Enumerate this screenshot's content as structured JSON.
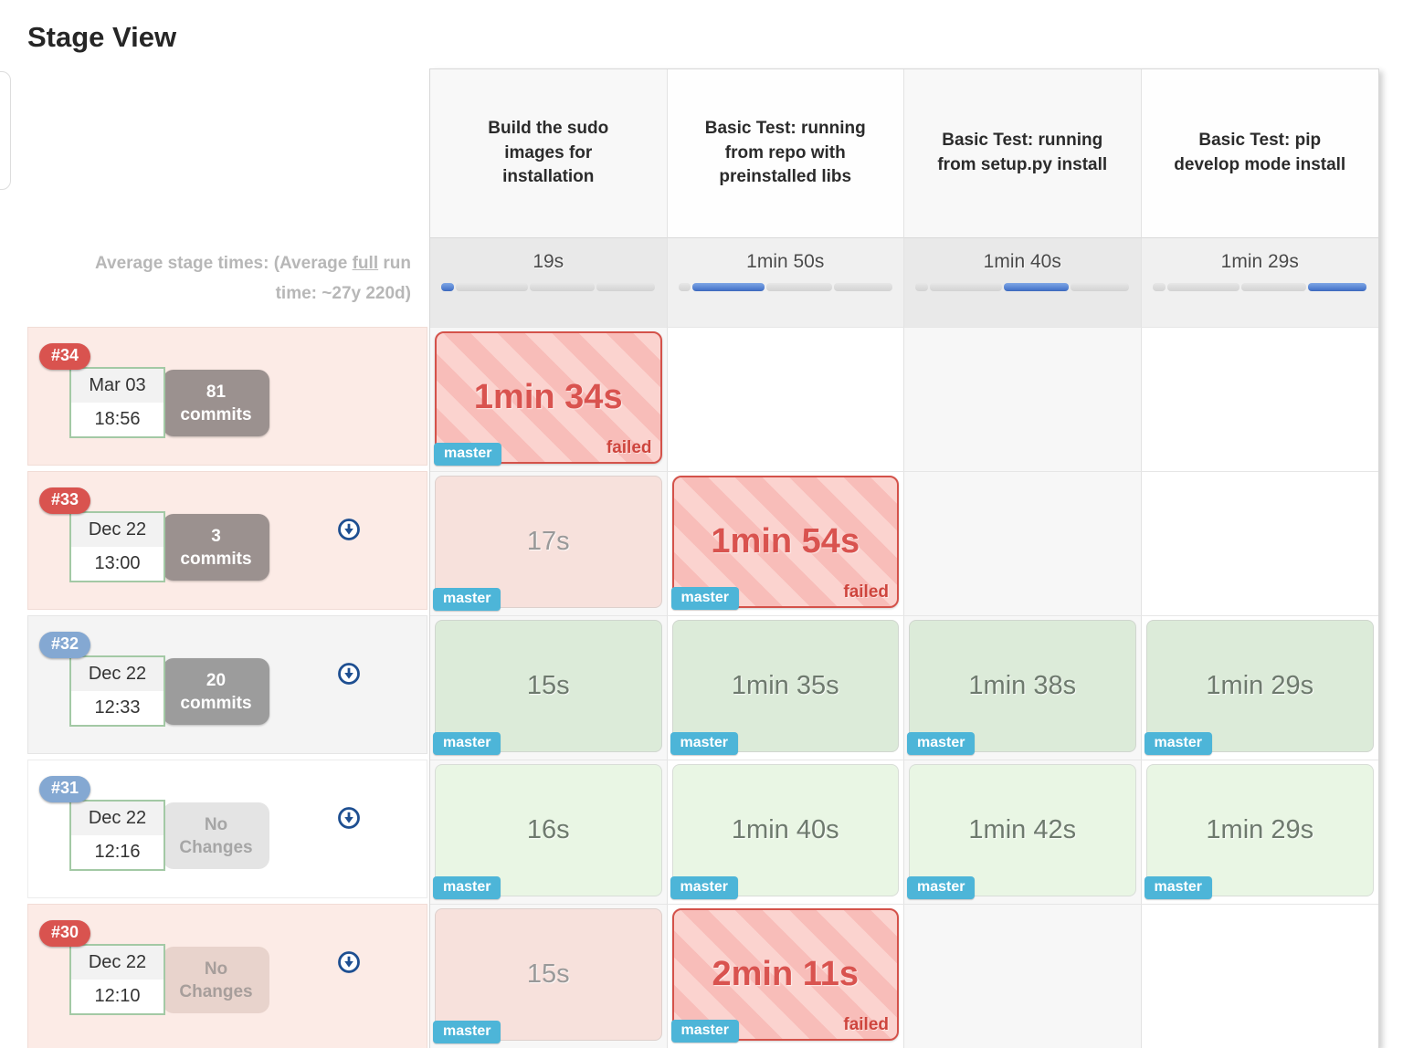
{
  "page": {
    "title": "Stage View"
  },
  "colors": {
    "failed_red": "#d9534f",
    "success_badge_blue": "#84a8d2",
    "branch_badge_blue": "#4db5d8",
    "progress_blue": "#4a78cb",
    "green_cell_dark": "#dcebd9",
    "green_cell_light": "#e9f6e4",
    "failed_row_pink": "#fcebe6"
  },
  "average_header": {
    "line1": "Average stage times:",
    "line2_prefix": "(Average ",
    "line2_underlined": "full",
    "line2_suffix": " run time: ~27y 220d)"
  },
  "average_row": {
    "segments_pct": [
      6,
      34.6,
      31.4,
      28
    ]
  },
  "stages": [
    {
      "name": "Build the sudo images for installation",
      "avg_time": "19s"
    },
    {
      "name": "Basic Test: running from repo with preinstalled libs",
      "avg_time": "1min 50s"
    },
    {
      "name": "Basic Test: running from setup.py install",
      "avg_time": "1min 40s"
    },
    {
      "name": "Basic Test: pip develop mode install",
      "avg_time": "1min 29s"
    }
  ],
  "builds": [
    {
      "id": "#34",
      "status": "failed",
      "date": "Mar 03",
      "time": "18:56",
      "changes": {
        "line1": "81",
        "line2": "commits"
      },
      "cells": [
        {
          "time": "1min 34s",
          "status": "failed",
          "branch": "master",
          "flag": "failed"
        },
        null,
        null,
        null
      ]
    },
    {
      "id": "#33",
      "status": "failed",
      "date": "Dec 22",
      "time": "13:00",
      "changes": {
        "line1": "3",
        "line2": "commits"
      },
      "cells": [
        {
          "time": "17s",
          "status": "passed-in-failed-run",
          "branch": "master"
        },
        {
          "time": "1min 54s",
          "status": "failed",
          "branch": "master",
          "flag": "failed"
        },
        null,
        null
      ]
    },
    {
      "id": "#32",
      "status": "success",
      "date": "Dec 22",
      "time": "12:33",
      "changes": {
        "line1": "20",
        "line2": "commits"
      },
      "cells": [
        {
          "time": "15s",
          "status": "success",
          "branch": "master"
        },
        {
          "time": "1min 35s",
          "status": "success",
          "branch": "master"
        },
        {
          "time": "1min 38s",
          "status": "success",
          "branch": "master"
        },
        {
          "time": "1min 29s",
          "status": "success",
          "branch": "master"
        }
      ]
    },
    {
      "id": "#31",
      "status": "success",
      "date": "Dec 22",
      "time": "12:16",
      "changes": {
        "line1": "No",
        "line2": "Changes"
      },
      "cells": [
        {
          "time": "16s",
          "status": "success",
          "branch": "master"
        },
        {
          "time": "1min 40s",
          "status": "success",
          "branch": "master"
        },
        {
          "time": "1min 42s",
          "status": "success",
          "branch": "master"
        },
        {
          "time": "1min 29s",
          "status": "success",
          "branch": "master"
        }
      ]
    },
    {
      "id": "#30",
      "status": "failed",
      "date": "Dec 22",
      "time": "12:10",
      "changes": {
        "line1": "No",
        "line2": "Changes"
      },
      "cells": [
        {
          "time": "15s",
          "status": "passed-in-failed-run",
          "branch": "master"
        },
        {
          "time": "2min 11s",
          "status": "failed",
          "branch": "master",
          "flag": "failed"
        },
        null,
        null
      ]
    }
  ]
}
